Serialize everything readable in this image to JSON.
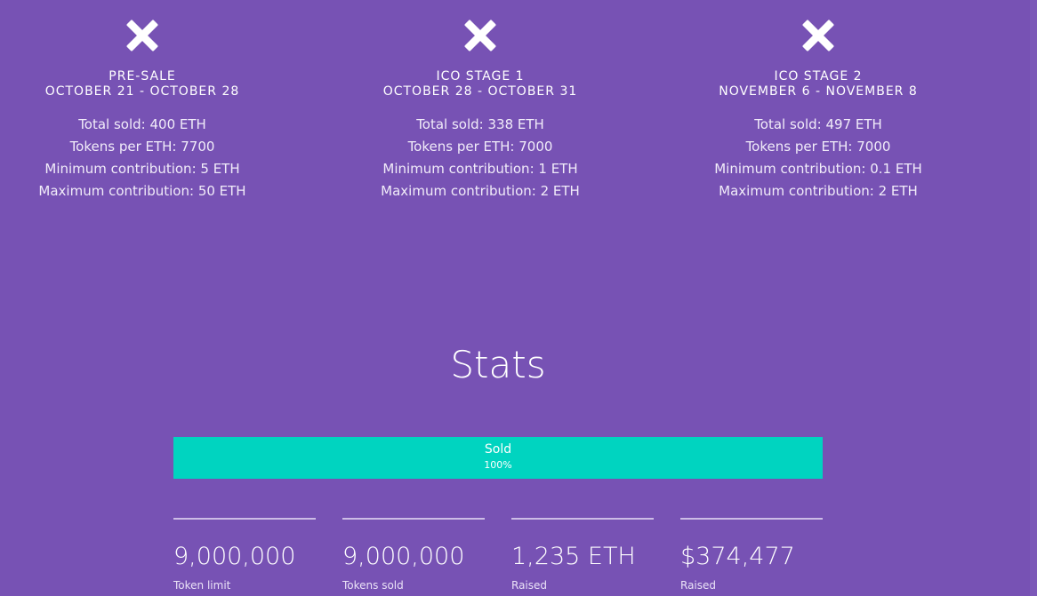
{
  "icons": {
    "stage_status": "close-x-icon"
  },
  "colors": {
    "background": "#7752b4",
    "progress_fill": "#00d4c0",
    "text": "#ffffff"
  },
  "stages": [
    {
      "title": "PRE-SALE",
      "dates": "OCTOBER  21 - OCTOBER 28",
      "total_sold": "Total sold: 400 ETH",
      "tokens_per_eth": "Tokens per ETH: 7700",
      "min_contribution": "Minimum contribution: 5 ETH",
      "max_contribution": "Maximum contribution: 50 ETH"
    },
    {
      "title": "ICO STAGE 1",
      "dates": "OCTOBER  28 - OCTOBER 31",
      "total_sold": "Total sold: 338 ETH",
      "tokens_per_eth": "Tokens per ETH: 7000",
      "min_contribution": "Minimum contribution: 1 ETH",
      "max_contribution": "Maximum contribution: 2 ETH"
    },
    {
      "title": "ICO STAGE 2",
      "dates": "NOVEMBER 6  -  NOVEMBER 8",
      "total_sold": "Total sold: 497 ETH",
      "tokens_per_eth": "Tokens per ETH: 7000",
      "min_contribution": "Minimum contribution: 0.1 ETH",
      "max_contribution": "Maximum contribution: 2 ETH"
    }
  ],
  "stats": {
    "title": "Stats",
    "progress": {
      "label": "Sold",
      "value_text": "100%",
      "fraction": 1.0
    },
    "items": [
      {
        "value": "9,000,000",
        "label": "Token limit"
      },
      {
        "value": "9,000,000",
        "label": "Tokens sold"
      },
      {
        "value": "1,235 ETH",
        "label": "Raised"
      },
      {
        "value": "$374,477",
        "label": "Raised"
      }
    ]
  }
}
